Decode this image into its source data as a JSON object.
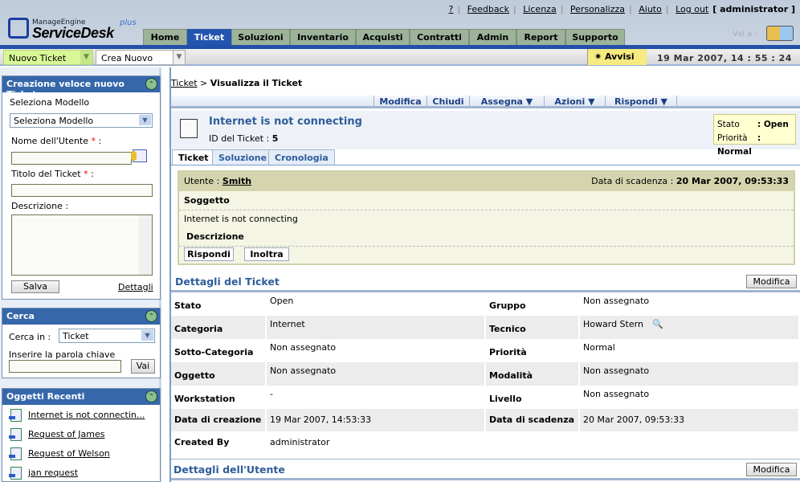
{
  "header": {
    "brand_small": "ManageEngine",
    "brand": "ServiceDesk",
    "brand_plus": "plus",
    "links": [
      "?",
      "Feedback",
      "Licenza",
      "Personalizza",
      "Aiuto",
      "Log out"
    ],
    "user": "[ administrator ]",
    "goto_label": "Vai a :"
  },
  "tabs": [
    "Home",
    "Ticket",
    "Soluzioni",
    "Inventario",
    "Acquisti",
    "Contratti",
    "Admin",
    "Report",
    "Supporto"
  ],
  "active_tab": "Ticket",
  "toolbar": {
    "new_ticket": "Nuovo Ticket",
    "create_new": "Crea Nuovo",
    "alerts": "Avvisi",
    "datetime": "19 Mar 2007, 14 : 55 : 24"
  },
  "quick_create": {
    "title": "Creazione veloce nuovo Ticket",
    "template_label": "Seleziona Modello",
    "template_value": "Seleziona Modello",
    "user_label": "Nome dell'Utente",
    "title_label": "Titolo del Ticket",
    "desc_label": "Descrizione :",
    "required": "*",
    "colon": ":",
    "save": "Salva",
    "details": "Dettagli"
  },
  "search": {
    "title": "Cerca",
    "in_label": "Cerca in :",
    "in_value": "Ticket",
    "keyword_label": "Inserire la parola chiave",
    "go": "Vai"
  },
  "recent": {
    "title": "Oggetti Recenti",
    "items": [
      "Internet is not connectin...",
      "Request of James",
      "Request of Welson",
      "jan request"
    ]
  },
  "breadcrumb": {
    "link": "Ticket",
    "sep": ">",
    "current": "Visualizza il Ticket"
  },
  "actions": [
    "Modifica",
    "Chiudi",
    "Assegna ▼",
    "Azioni ▼",
    "Rispondi ▼"
  ],
  "ticket": {
    "title": "Internet is not connecting",
    "id_label": "ID del Ticket :",
    "id": "5",
    "status_label": "Stato",
    "status": ": Open",
    "priority_label": "Priorità",
    "priority": ": Normal"
  },
  "ticket_tabs": [
    "Ticket",
    "Soluzione",
    "Cronologia"
  ],
  "conversation": {
    "user_label": "Utente :",
    "user": "Smith",
    "due_label": "Data di scadenza :",
    "due": "20 Mar 2007, 09:53:33",
    "subject_label": "Soggetto",
    "subject": "Internet is not connecting",
    "desc_label": "Descrizione",
    "reply": "Rispondi",
    "forward": "Inoltra"
  },
  "details": {
    "title": "Dettagli del Ticket",
    "edit": "Modifica",
    "rows": [
      {
        "l1": "Stato",
        "v1": "Open",
        "l2": "Gruppo",
        "v2": "Non assegnato"
      },
      {
        "l1": "Categoria",
        "v1": "Internet",
        "l2": "Tecnico",
        "v2": "Howard Stern"
      },
      {
        "l1": "Sotto-Categoria",
        "v1": "Non assegnato",
        "l2": "Priorità",
        "v2": "Normal"
      },
      {
        "l1": "Oggetto",
        "v1": "Non assegnato",
        "l2": "Modalità",
        "v2": "Non assegnato"
      },
      {
        "l1": "Workstation",
        "v1": "-",
        "l2": "Livello",
        "v2": "Non assegnato"
      },
      {
        "l1": "Data di creazione",
        "v1": "19 Mar 2007, 14:53:33",
        "l2": "Data di scadenza",
        "v2": "20 Mar 2007, 09:53:33"
      },
      {
        "l1": "Created By",
        "v1": "administrator",
        "l2": "",
        "v2": ""
      }
    ]
  },
  "user_details": {
    "title": "Dettagli dell'Utente",
    "edit": "Modifica"
  },
  "colors": {
    "nav_blue": "#2250a8",
    "tab_green": "#9cb39a",
    "panel_header": "#3567aa",
    "title_blue": "#2e5d9a"
  }
}
